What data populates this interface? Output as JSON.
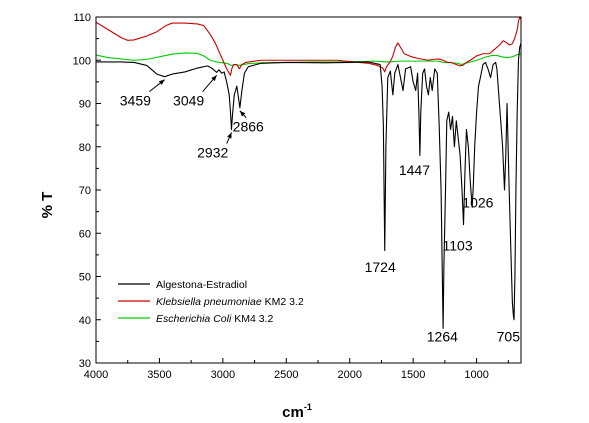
{
  "chart_data": {
    "type": "line",
    "xlabel": "cm",
    "xlabel_sup": "-1",
    "ylabel": "% T",
    "xlim": [
      4000,
      650
    ],
    "ylim": [
      30,
      110
    ],
    "x_ticks": [
      4000,
      3500,
      3000,
      2500,
      2000,
      1500,
      1000
    ],
    "y_ticks": [
      30,
      40,
      50,
      60,
      70,
      80,
      90,
      100,
      110
    ],
    "legend_position": "bottom-left",
    "series": [
      {
        "name": "Algestona-Estradiol",
        "name_italic": "",
        "name_suffix": "",
        "color": "#000000",
        "points": [
          [
            4000,
            99.6
          ],
          [
            3800,
            99.6
          ],
          [
            3700,
            99.5
          ],
          [
            3600,
            98.8
          ],
          [
            3520,
            96.8
          ],
          [
            3459,
            96.2
          ],
          [
            3400,
            96.8
          ],
          [
            3300,
            97.3
          ],
          [
            3200,
            98.2
          ],
          [
            3120,
            98.7
          ],
          [
            3080,
            98.0
          ],
          [
            3049,
            97.2
          ],
          [
            3030,
            97.8
          ],
          [
            3010,
            97.0
          ],
          [
            2990,
            97.3
          ],
          [
            2970,
            95.0
          ],
          [
            2950,
            92.0
          ],
          [
            2940,
            88.0
          ],
          [
            2932,
            84.0
          ],
          [
            2925,
            87.0
          ],
          [
            2910,
            92.0
          ],
          [
            2890,
            94.0
          ],
          [
            2880,
            92.0
          ],
          [
            2866,
            89.0
          ],
          [
            2850,
            93.0
          ],
          [
            2830,
            97.0
          ],
          [
            2800,
            98.5
          ],
          [
            2700,
            99.3
          ],
          [
            2500,
            99.5
          ],
          [
            2200,
            99.4
          ],
          [
            2000,
            99.5
          ],
          [
            1850,
            99.6
          ],
          [
            1760,
            99.0
          ],
          [
            1745,
            94.0
          ],
          [
            1735,
            85.0
          ],
          [
            1724,
            56.0
          ],
          [
            1715,
            80.0
          ],
          [
            1700,
            96.0
          ],
          [
            1680,
            97.5
          ],
          [
            1660,
            92.0
          ],
          [
            1645,
            97.0
          ],
          [
            1620,
            99.0
          ],
          [
            1600,
            96.0
          ],
          [
            1580,
            93.0
          ],
          [
            1560,
            98.0
          ],
          [
            1520,
            98.5
          ],
          [
            1500,
            95.0
          ],
          [
            1480,
            93.0
          ],
          [
            1465,
            97.0
          ],
          [
            1455,
            88.0
          ],
          [
            1447,
            78.0
          ],
          [
            1440,
            88.0
          ],
          [
            1425,
            97.0
          ],
          [
            1410,
            98.0
          ],
          [
            1395,
            94.0
          ],
          [
            1380,
            92.0
          ],
          [
            1365,
            96.0
          ],
          [
            1350,
            93.0
          ],
          [
            1330,
            98.0
          ],
          [
            1310,
            97.0
          ],
          [
            1295,
            85.0
          ],
          [
            1280,
            70.0
          ],
          [
            1270,
            50.0
          ],
          [
            1264,
            38.0
          ],
          [
            1258,
            52.0
          ],
          [
            1245,
            70.0
          ],
          [
            1235,
            86.0
          ],
          [
            1220,
            88.0
          ],
          [
            1205,
            84.0
          ],
          [
            1190,
            87.0
          ],
          [
            1175,
            80.0
          ],
          [
            1160,
            86.0
          ],
          [
            1145,
            82.0
          ],
          [
            1130,
            78.0
          ],
          [
            1115,
            70.0
          ],
          [
            1103,
            62.0
          ],
          [
            1092,
            74.0
          ],
          [
            1080,
            84.0
          ],
          [
            1065,
            80.0
          ],
          [
            1050,
            72.0
          ],
          [
            1035,
            66.0
          ],
          [
            1026,
            71.0
          ],
          [
            1015,
            80.0
          ],
          [
            1000,
            88.0
          ],
          [
            985,
            94.0
          ],
          [
            970,
            96.0
          ],
          [
            950,
            99.0
          ],
          [
            930,
            99.5
          ],
          [
            910,
            98.0
          ],
          [
            890,
            96.0
          ],
          [
            870,
            99.0
          ],
          [
            850,
            99.5
          ],
          [
            840,
            98.0
          ],
          [
            825,
            92.0
          ],
          [
            810,
            86.0
          ],
          [
            795,
            80.0
          ],
          [
            780,
            70.0
          ],
          [
            770,
            78.0
          ],
          [
            760,
            90.0
          ],
          [
            745,
            72.0
          ],
          [
            730,
            56.0
          ],
          [
            718,
            44.0
          ],
          [
            710,
            41.0
          ],
          [
            705,
            40.0
          ],
          [
            698,
            50.0
          ],
          [
            690,
            70.0
          ],
          [
            680,
            88.0
          ],
          [
            670,
            100.0
          ],
          [
            660,
            103.0
          ],
          [
            650,
            104.0
          ]
        ]
      },
      {
        "name": "Klebsiella pneumoniae KM2 3.2",
        "name_italic": "Klebsiella pneumoniae",
        "name_suffix": " KM2 3.2",
        "color": "#cc0000",
        "points": [
          [
            4000,
            108.8
          ],
          [
            3900,
            107.0
          ],
          [
            3800,
            105.2
          ],
          [
            3750,
            104.6
          ],
          [
            3700,
            104.7
          ],
          [
            3600,
            105.6
          ],
          [
            3520,
            106.6
          ],
          [
            3450,
            108.0
          ],
          [
            3400,
            108.6
          ],
          [
            3300,
            108.6
          ],
          [
            3200,
            108.4
          ],
          [
            3150,
            108.0
          ],
          [
            3100,
            106.0
          ],
          [
            3060,
            104.0
          ],
          [
            3030,
            102.0
          ],
          [
            3000,
            100.0
          ],
          [
            2970,
            98.0
          ],
          [
            2940,
            96.5
          ],
          [
            2930,
            98.0
          ],
          [
            2915,
            99.0
          ],
          [
            2890,
            99.0
          ],
          [
            2870,
            98.0
          ],
          [
            2850,
            99.0
          ],
          [
            2820,
            99.5
          ],
          [
            2700,
            100.0
          ],
          [
            2500,
            100.0
          ],
          [
            2300,
            100.0
          ],
          [
            2100,
            100.0
          ],
          [
            2000,
            99.7
          ],
          [
            1850,
            99.3
          ],
          [
            1780,
            98.8
          ],
          [
            1740,
            98.2
          ],
          [
            1724,
            97.3
          ],
          [
            1710,
            98.5
          ],
          [
            1680,
            99.7
          ],
          [
            1660,
            101.0
          ],
          [
            1640,
            103.0
          ],
          [
            1620,
            104.0
          ],
          [
            1600,
            103.0
          ],
          [
            1570,
            101.5
          ],
          [
            1530,
            101.0
          ],
          [
            1500,
            100.7
          ],
          [
            1460,
            100.4
          ],
          [
            1420,
            100.2
          ],
          [
            1380,
            100.0
          ],
          [
            1340,
            100.2
          ],
          [
            1300,
            100.3
          ],
          [
            1264,
            100.0
          ],
          [
            1230,
            99.5
          ],
          [
            1200,
            99.5
          ],
          [
            1160,
            99.0
          ],
          [
            1130,
            98.7
          ],
          [
            1110,
            98.8
          ],
          [
            1080,
            99.5
          ],
          [
            1050,
            100.0
          ],
          [
            1000,
            101.0
          ],
          [
            950,
            101.5
          ],
          [
            900,
            101.5
          ],
          [
            860,
            102.5
          ],
          [
            820,
            103.5
          ],
          [
            790,
            104.5
          ],
          [
            760,
            104.0
          ],
          [
            740,
            103.5
          ],
          [
            720,
            103.8
          ],
          [
            700,
            105.0
          ],
          [
            680,
            107.0
          ],
          [
            670,
            109.0
          ],
          [
            660,
            110.0
          ],
          [
            650,
            109.5
          ]
        ]
      },
      {
        "name": "Escherichia Coli KM4 3.2",
        "name_italic": "Escherichia Coli",
        "name_suffix": " KM4 3.2",
        "color": "#00cc00",
        "points": [
          [
            4000,
            101.2
          ],
          [
            3900,
            100.6
          ],
          [
            3800,
            100.3
          ],
          [
            3700,
            100.0
          ],
          [
            3600,
            100.2
          ],
          [
            3500,
            100.8
          ],
          [
            3400,
            101.4
          ],
          [
            3300,
            101.7
          ],
          [
            3200,
            101.6
          ],
          [
            3150,
            101.0
          ],
          [
            3100,
            100.0
          ],
          [
            3050,
            99.6
          ],
          [
            3000,
            99.4
          ],
          [
            2960,
            99.2
          ],
          [
            2930,
            98.8
          ],
          [
            2900,
            99.0
          ],
          [
            2870,
            98.8
          ],
          [
            2840,
            99.0
          ],
          [
            2800,
            99.2
          ],
          [
            2700,
            99.4
          ],
          [
            2500,
            99.5
          ],
          [
            2300,
            99.6
          ],
          [
            2100,
            99.6
          ],
          [
            2000,
            99.7
          ],
          [
            1900,
            99.7
          ],
          [
            1800,
            99.8
          ],
          [
            1700,
            99.6
          ],
          [
            1600,
            99.8
          ],
          [
            1500,
            99.8
          ],
          [
            1400,
            99.8
          ],
          [
            1300,
            99.8
          ],
          [
            1264,
            99.5
          ],
          [
            1200,
            99.4
          ],
          [
            1150,
            99.3
          ],
          [
            1120,
            99.0
          ],
          [
            1100,
            99.2
          ],
          [
            1050,
            99.6
          ],
          [
            1000,
            100.0
          ],
          [
            960,
            100.4
          ],
          [
            920,
            100.8
          ],
          [
            880,
            101.1
          ],
          [
            840,
            101.1
          ],
          [
            800,
            100.8
          ],
          [
            760,
            100.6
          ],
          [
            720,
            100.8
          ],
          [
            700,
            101.0
          ],
          [
            680,
            101.3
          ],
          [
            650,
            101.5
          ]
        ]
      }
    ],
    "annotations": [
      {
        "label": "3459",
        "at": [
          3459,
          96.2
        ],
        "text_at": [
          3690,
          89.5
        ]
      },
      {
        "label": "3049",
        "at": [
          3049,
          97.2
        ],
        "text_at": [
          3270,
          89.5
        ]
      },
      {
        "label": "2932",
        "at": [
          2932,
          84.0
        ],
        "text_at": [
          3080,
          77.5
        ]
      },
      {
        "label": "2866",
        "at": [
          2866,
          89.0
        ],
        "text_at": [
          2800,
          83.5
        ]
      },
      {
        "label": "1724",
        "at": [
          1724,
          56.0
        ],
        "text_at": [
          1760,
          51.0
        ]
      },
      {
        "label": "1447",
        "at": [
          1447,
          78.0
        ],
        "text_at": [
          1490,
          73.5
        ]
      },
      {
        "label": "1264",
        "at": [
          1264,
          38.0
        ],
        "text_at": [
          1270,
          35.0
        ]
      },
      {
        "label": "1103",
        "at": [
          1103,
          62.0
        ],
        "text_at": [
          1150,
          56.0
        ]
      },
      {
        "label": "1026",
        "at": [
          1026,
          71.0
        ],
        "text_at": [
          990,
          66.0
        ]
      },
      {
        "label": "705",
        "at": [
          705,
          40.0
        ],
        "text_at": [
          750,
          35.0
        ]
      }
    ],
    "arrows_for": [
      "3459",
      "3049",
      "2932",
      "2866"
    ]
  }
}
